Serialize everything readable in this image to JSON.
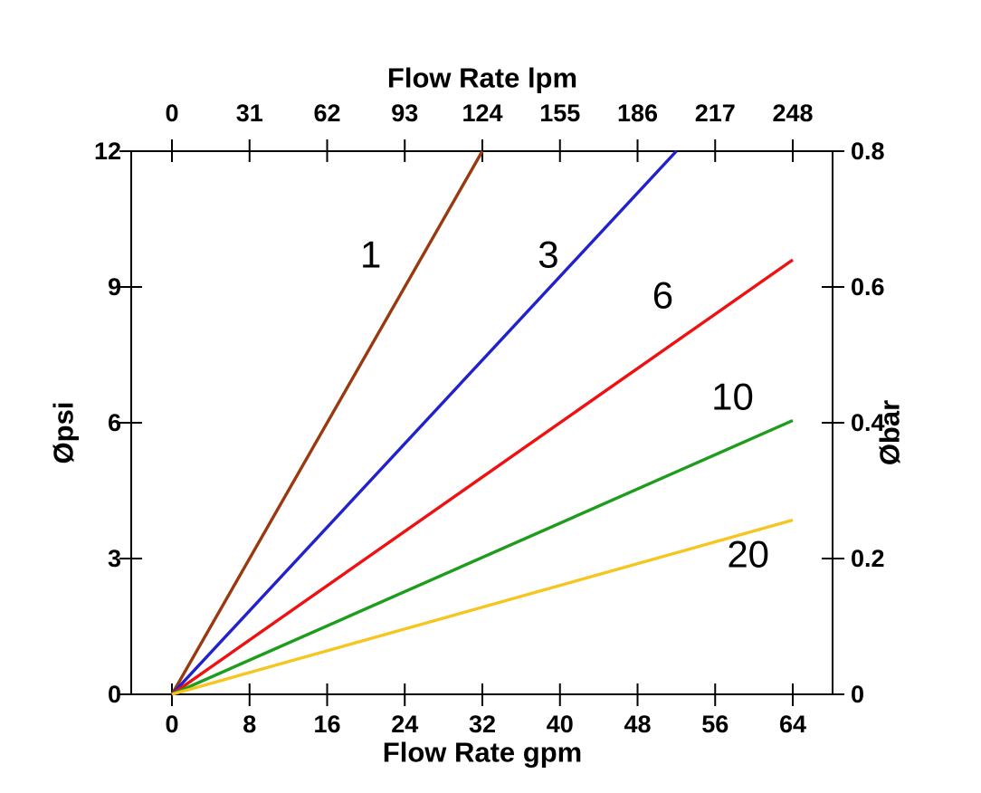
{
  "chart_data": {
    "type": "line",
    "title": "",
    "grid": false,
    "legend": "none - series labeled inline on plot",
    "background_color": "#FFFFFF",
    "axis_color": "#000000",
    "axes": {
      "top": {
        "title": "Flow Rate lpm",
        "ticks": [
          "0",
          "31",
          "62",
          "93",
          "124",
          "155",
          "186",
          "217",
          "248"
        ],
        "range": [
          0,
          248
        ]
      },
      "bottom": {
        "title": "Flow Rate gpm",
        "ticks": [
          "0",
          "8",
          "16",
          "24",
          "32",
          "40",
          "48",
          "56",
          "64"
        ],
        "range": [
          0,
          64
        ]
      },
      "left": {
        "title": "Øpsi",
        "ticks": [
          "0",
          "3",
          "6",
          "9",
          "12"
        ],
        "range": [
          0,
          12
        ]
      },
      "right": {
        "title": "Øbar",
        "ticks": [
          "0",
          "0.2",
          "0.4",
          "0.6",
          "0.8"
        ],
        "range": [
          0,
          0.8
        ]
      }
    },
    "series_units": {
      "x": "gpm",
      "y": "psi"
    },
    "series": [
      {
        "label": "1",
        "color": "#993910",
        "points": [
          [
            0,
            0
          ],
          [
            32,
            12
          ]
        ],
        "label_at": [
          20.5,
          9.72
        ]
      },
      {
        "label": "3",
        "color": "#2222CC",
        "points": [
          [
            0,
            0
          ],
          [
            52,
            12
          ]
        ],
        "label_at": [
          38.8,
          9.72
        ]
      },
      {
        "label": "6",
        "color": "#EE1111",
        "points": [
          [
            0,
            0
          ],
          [
            64,
            9.6
          ]
        ],
        "label_at": [
          50.6,
          8.82
        ]
      },
      {
        "label": "10",
        "color": "#1E9C1E",
        "points": [
          [
            0,
            0
          ],
          [
            64,
            6.05
          ]
        ],
        "label_at": [
          57.8,
          6.58
        ]
      },
      {
        "label": "20",
        "color": "#F6C51F",
        "points": [
          [
            0,
            0
          ],
          [
            64,
            3.85
          ]
        ],
        "label_at": [
          59.4,
          3.1
        ]
      }
    ]
  }
}
